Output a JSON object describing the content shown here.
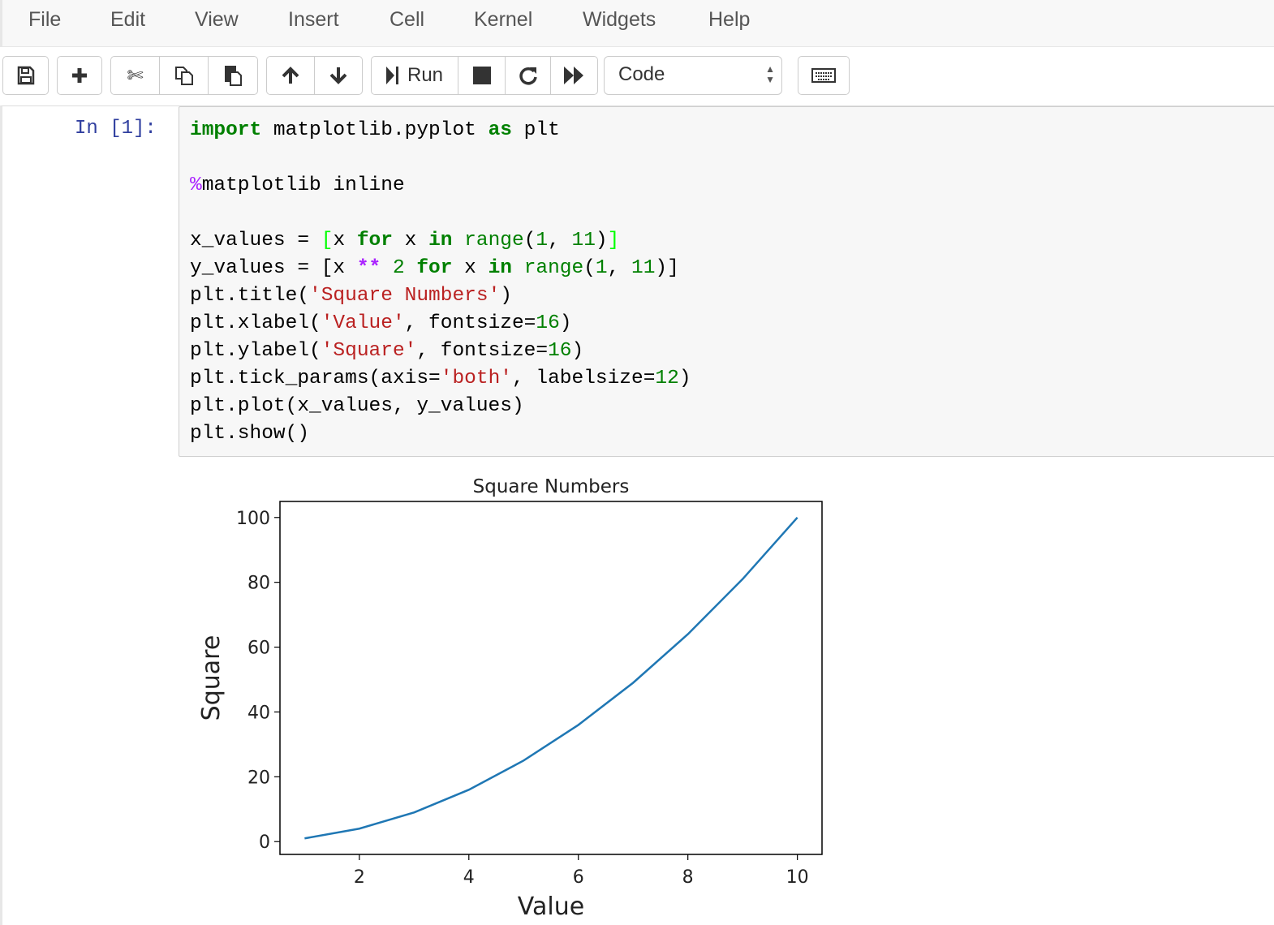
{
  "menu": [
    "File",
    "Edit",
    "View",
    "Insert",
    "Cell",
    "Kernel",
    "Widgets",
    "Help"
  ],
  "toolbar": {
    "icons": [
      "save-icon",
      "plus-icon",
      "cut-icon",
      "copy-icon",
      "paste-icon",
      "arrow-up-icon",
      "arrow-down-icon",
      "run-icon",
      "stop-icon",
      "restart-icon",
      "fast-forward-icon",
      "keyboard-icon"
    ],
    "run_label": "Run",
    "cell_type": "Code"
  },
  "cell": {
    "prompt": "In [1]:",
    "code": [
      [
        [
          "import",
          "kw"
        ],
        [
          " matplotlib.pyplot ",
          ""
        ],
        [
          "as",
          "kw"
        ],
        [
          " plt",
          ""
        ]
      ],
      [],
      [
        [
          "%",
          "magic"
        ],
        [
          "matplotlib inline",
          ""
        ]
      ],
      [],
      [
        [
          "x_values = ",
          ""
        ],
        [
          "[",
          "bracket-hl"
        ],
        [
          "x ",
          ""
        ],
        [
          "for",
          "kw"
        ],
        [
          " x ",
          ""
        ],
        [
          "in",
          "kw"
        ],
        [
          " ",
          ""
        ],
        [
          "range",
          "builtin"
        ],
        [
          "(",
          ""
        ],
        [
          "1",
          "num"
        ],
        [
          ", ",
          ""
        ],
        [
          "11",
          "num"
        ],
        [
          ")",
          ""
        ],
        [
          "]",
          "bracket-hl"
        ]
      ],
      [
        [
          "y_values = [x ",
          ""
        ],
        [
          "**",
          "op"
        ],
        [
          " ",
          ""
        ],
        [
          "2",
          "num"
        ],
        [
          " ",
          ""
        ],
        [
          "for",
          "kw"
        ],
        [
          " x ",
          ""
        ],
        [
          "in",
          "kw"
        ],
        [
          " ",
          ""
        ],
        [
          "range",
          "builtin"
        ],
        [
          "(",
          ""
        ],
        [
          "1",
          "num"
        ],
        [
          ", ",
          ""
        ],
        [
          "11",
          "num"
        ],
        [
          ")]",
          ""
        ]
      ],
      [
        [
          "plt.title(",
          ""
        ],
        [
          "'Square Numbers'",
          "str"
        ],
        [
          ")",
          ""
        ]
      ],
      [
        [
          "plt.xlabel(",
          ""
        ],
        [
          "'Value'",
          "str"
        ],
        [
          ", fontsize=",
          ""
        ],
        [
          "16",
          "num"
        ],
        [
          ")",
          ""
        ]
      ],
      [
        [
          "plt.ylabel(",
          ""
        ],
        [
          "'Square'",
          "str"
        ],
        [
          ", fontsize=",
          ""
        ],
        [
          "16",
          "num"
        ],
        [
          ")",
          ""
        ]
      ],
      [
        [
          "plt.tick_params(axis=",
          ""
        ],
        [
          "'both'",
          "str"
        ],
        [
          ", labelsize=",
          ""
        ],
        [
          "12",
          "num"
        ],
        [
          ")",
          ""
        ]
      ],
      [
        [
          "plt.plot(x_values, y_values)",
          ""
        ]
      ],
      [
        [
          "plt.show()",
          ""
        ]
      ]
    ]
  },
  "chart_data": {
    "type": "line",
    "title": "Square Numbers",
    "xlabel": "Value",
    "ylabel": "Square",
    "x": [
      1,
      2,
      3,
      4,
      5,
      6,
      7,
      8,
      9,
      10
    ],
    "series": [
      {
        "values": [
          1,
          4,
          9,
          16,
          25,
          36,
          49,
          64,
          81,
          100
        ],
        "color": "#1f77b4"
      }
    ],
    "xlim": [
      0.55,
      10.45
    ],
    "ylim": [
      -3.95,
      104.95
    ],
    "xticks": [
      2,
      4,
      6,
      8,
      10
    ],
    "yticks": [
      0,
      20,
      40,
      60,
      80,
      100
    ],
    "grid": false
  }
}
